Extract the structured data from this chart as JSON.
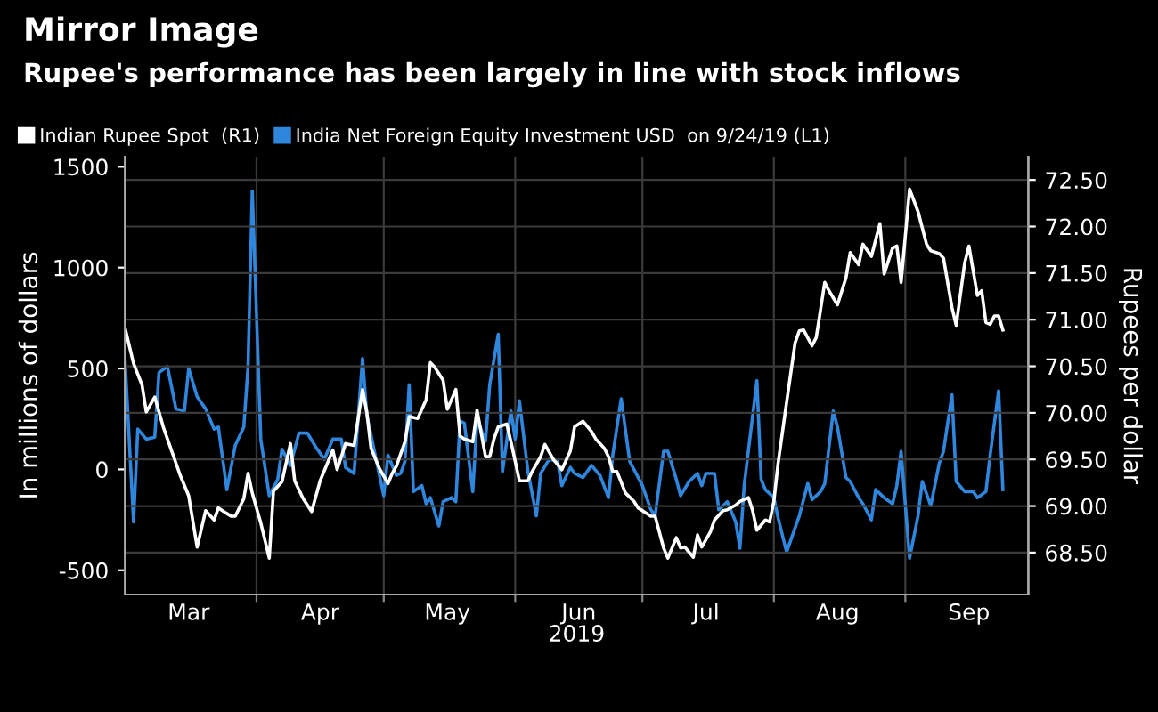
{
  "chart_data": {
    "type": "line",
    "title": "Mirror Image",
    "subtitle": "Rupee's performance has been largely in line with stock inflows",
    "xlabel": "2019",
    "ylabel": "In millions of dollars",
    "y2label": "Rupees per dollar",
    "xlim": [
      "2019-03-01",
      "2019-09-30"
    ],
    "xticks": [
      {
        "value": "2019-04-01",
        "label": null
      },
      {
        "value": "2019-05-01",
        "label": null
      },
      {
        "value": "2019-06-01",
        "label": null
      },
      {
        "value": "2019-07-01",
        "label": null
      },
      {
        "value": "2019-08-01",
        "label": null
      },
      {
        "value": "2019-09-01",
        "label": null
      },
      {
        "value": "2019-03-16",
        "label": "Mar"
      },
      {
        "value": "2019-04-16",
        "label": "Apr"
      },
      {
        "value": "2019-05-16",
        "label": "May"
      },
      {
        "value": "2019-06-16",
        "label": "Jun"
      },
      {
        "value": "2019-07-16",
        "label": "Jul"
      },
      {
        "value": "2019-08-16",
        "label": "Aug"
      },
      {
        "value": "2019-09-16",
        "label": "Sep"
      }
    ],
    "ylim": [
      -620,
      1550
    ],
    "yticks": [
      -500,
      0,
      500,
      1000,
      1500
    ],
    "y2lim": [
      68.05,
      72.75
    ],
    "y2ticks": [
      {
        "value": 68.5,
        "label": "68.50"
      },
      {
        "value": 69.0,
        "label": "69.00"
      },
      {
        "value": 69.5,
        "label": "69.50"
      },
      {
        "value": 70.0,
        "label": "70.00"
      },
      {
        "value": 70.5,
        "label": "70.50"
      },
      {
        "value": 71.0,
        "label": "71.00"
      },
      {
        "value": 71.5,
        "label": "71.50"
      },
      {
        "value": 72.0,
        "label": "72.00"
      },
      {
        "value": 72.5,
        "label": "72.50"
      }
    ],
    "grid": true,
    "legend": "top left",
    "line_style": "solid",
    "marker": "none",
    "series": [
      {
        "name": "Indian Rupee Spot  (R1)",
        "color": "#ffffff",
        "axis": "y2",
        "x": [
          "2019-03-01",
          "2019-03-03",
          "2019-03-05",
          "2019-03-06",
          "2019-03-08",
          "2019-03-10",
          "2019-03-12",
          "2019-03-14",
          "2019-03-16",
          "2019-03-18",
          "2019-03-20",
          "2019-03-22",
          "2019-03-23",
          "2019-03-26",
          "2019-03-27",
          "2019-03-29",
          "2019-03-30",
          "2019-03-31",
          "2019-04-02",
          "2019-04-04",
          "2019-04-05",
          "2019-04-07",
          "2019-04-09",
          "2019-04-10",
          "2019-04-12",
          "2019-04-14",
          "2019-04-16",
          "2019-04-19",
          "2019-04-20",
          "2019-04-22",
          "2019-04-24",
          "2019-04-26",
          "2019-04-27",
          "2019-04-28",
          "2019-04-30",
          "2019-05-02",
          "2019-05-03",
          "2019-05-04",
          "2019-05-06",
          "2019-05-07",
          "2019-05-09",
          "2019-05-11",
          "2019-05-12",
          "2019-05-13",
          "2019-05-15",
          "2019-05-16",
          "2019-05-18",
          "2019-05-19",
          "2019-05-20",
          "2019-05-22",
          "2019-05-23",
          "2019-05-25",
          "2019-05-26",
          "2019-05-27",
          "2019-05-28",
          "2019-05-30",
          "2019-05-31",
          "2019-06-02",
          "2019-06-04",
          "2019-06-05",
          "2019-06-07",
          "2019-06-08",
          "2019-06-10",
          "2019-06-12",
          "2019-06-14",
          "2019-06-15",
          "2019-06-17",
          "2019-06-19",
          "2019-06-20",
          "2019-06-22",
          "2019-06-23",
          "2019-06-24",
          "2019-06-25",
          "2019-06-27",
          "2019-06-29",
          "2019-06-30",
          "2019-07-01",
          "2019-07-03",
          "2019-07-04",
          "2019-07-06",
          "2019-07-07",
          "2019-07-09",
          "2019-07-10",
          "2019-07-11",
          "2019-07-13",
          "2019-07-14",
          "2019-07-15",
          "2019-07-17",
          "2019-07-18",
          "2019-07-20",
          "2019-07-21",
          "2019-07-23",
          "2019-07-24",
          "2019-07-26",
          "2019-07-27",
          "2019-07-28",
          "2019-07-30",
          "2019-07-31",
          "2019-08-01",
          "2019-08-02",
          "2019-08-04",
          "2019-08-06",
          "2019-08-07",
          "2019-08-08",
          "2019-08-10",
          "2019-08-11",
          "2019-08-13",
          "2019-08-14",
          "2019-08-16",
          "2019-08-18",
          "2019-08-19",
          "2019-08-21",
          "2019-08-22",
          "2019-08-24",
          "2019-08-26",
          "2019-08-27",
          "2019-08-29",
          "2019-08-30",
          "2019-08-31",
          "2019-09-02",
          "2019-09-04",
          "2019-09-06",
          "2019-09-07",
          "2019-09-09",
          "2019-09-10",
          "2019-09-12",
          "2019-09-13",
          "2019-09-15",
          "2019-09-16",
          "2019-09-18",
          "2019-09-19",
          "2019-09-20",
          "2019-09-21",
          "2019-09-22",
          "2019-09-23",
          "2019-09-24"
        ],
        "values": [
          70.91,
          70.53,
          70.3,
          70.01,
          70.17,
          69.85,
          69.59,
          69.33,
          69.11,
          68.56,
          68.95,
          68.85,
          68.98,
          68.89,
          68.89,
          69.08,
          69.35,
          69.14,
          68.82,
          68.44,
          69.16,
          69.26,
          69.67,
          69.27,
          69.08,
          68.94,
          69.27,
          69.6,
          69.39,
          69.67,
          69.65,
          70.25,
          70.01,
          69.62,
          69.4,
          69.24,
          69.35,
          69.43,
          69.69,
          69.96,
          69.94,
          70.14,
          70.54,
          70.49,
          70.35,
          70.04,
          70.25,
          69.75,
          69.72,
          69.69,
          70.03,
          69.53,
          69.53,
          69.72,
          69.85,
          69.88,
          69.69,
          69.27,
          69.27,
          69.37,
          69.53,
          69.66,
          69.5,
          69.39,
          69.59,
          69.85,
          69.91,
          69.8,
          69.72,
          69.62,
          69.53,
          69.37,
          69.37,
          69.14,
          69.05,
          68.98,
          68.95,
          68.89,
          68.89,
          68.55,
          68.44,
          68.66,
          68.55,
          68.56,
          68.45,
          68.69,
          68.56,
          68.72,
          68.85,
          68.95,
          68.96,
          69.01,
          69.05,
          69.09,
          68.95,
          68.74,
          68.85,
          68.83,
          69.05,
          69.46,
          70.11,
          70.75,
          70.88,
          70.89,
          70.72,
          70.81,
          71.4,
          71.31,
          71.16,
          71.45,
          71.72,
          71.59,
          71.81,
          71.68,
          72.03,
          71.49,
          71.77,
          71.79,
          71.4,
          72.4,
          72.16,
          71.81,
          71.74,
          71.71,
          71.66,
          71.13,
          70.94,
          71.61,
          71.79,
          71.26,
          71.31,
          70.97,
          70.95,
          71.04,
          71.04,
          70.89
        ]
      },
      {
        "name": "India Net Foreign Equity Investment USD  on 9/24/19 (L1)",
        "color": "#2f86dd",
        "x": [
          "2019-03-01",
          "2019-03-03",
          "2019-03-04",
          "2019-03-06",
          "2019-03-08",
          "2019-03-09",
          "2019-03-11",
          "2019-03-13",
          "2019-03-15",
          "2019-03-16",
          "2019-03-18",
          "2019-03-20",
          "2019-03-22",
          "2019-03-23",
          "2019-03-25",
          "2019-03-27",
          "2019-03-29",
          "2019-03-30",
          "2019-03-31",
          "2019-04-02",
          "2019-04-04",
          "2019-04-06",
          "2019-04-07",
          "2019-04-09",
          "2019-04-11",
          "2019-04-13",
          "2019-04-15",
          "2019-04-17",
          "2019-04-19",
          "2019-04-21",
          "2019-04-22",
          "2019-04-24",
          "2019-04-26",
          "2019-04-27",
          "2019-04-29",
          "2019-05-01",
          "2019-05-02",
          "2019-05-04",
          "2019-05-05",
          "2019-05-06",
          "2019-05-07",
          "2019-05-08",
          "2019-05-10",
          "2019-05-11",
          "2019-05-12",
          "2019-05-14",
          "2019-05-15",
          "2019-05-17",
          "2019-05-18",
          "2019-05-19",
          "2019-05-20",
          "2019-05-22",
          "2019-05-23",
          "2019-05-25",
          "2019-05-26",
          "2019-05-28",
          "2019-05-29",
          "2019-05-31",
          "2019-06-01",
          "2019-06-02",
          "2019-06-04",
          "2019-06-06",
          "2019-06-07",
          "2019-06-09",
          "2019-06-11",
          "2019-06-12",
          "2019-06-14",
          "2019-06-15",
          "2019-06-17",
          "2019-06-19",
          "2019-06-21",
          "2019-06-23",
          "2019-06-24",
          "2019-06-26",
          "2019-06-28",
          "2019-06-29",
          "2019-07-01",
          "2019-07-03",
          "2019-07-04",
          "2019-07-06",
          "2019-07-07",
          "2019-07-09",
          "2019-07-10",
          "2019-07-12",
          "2019-07-14",
          "2019-07-15",
          "2019-07-16",
          "2019-07-18",
          "2019-07-19",
          "2019-07-21",
          "2019-07-23",
          "2019-07-24",
          "2019-07-25",
          "2019-07-28",
          "2019-07-29",
          "2019-07-30",
          "2019-08-01",
          "2019-08-02",
          "2019-08-04",
          "2019-08-06",
          "2019-08-07",
          "2019-08-09",
          "2019-08-10",
          "2019-08-12",
          "2019-08-13",
          "2019-08-15",
          "2019-08-16",
          "2019-08-18",
          "2019-08-19",
          "2019-08-21",
          "2019-08-22",
          "2019-08-24",
          "2019-08-25",
          "2019-08-27",
          "2019-08-29",
          "2019-08-30",
          "2019-08-31",
          "2019-09-02",
          "2019-09-04",
          "2019-09-05",
          "2019-09-07",
          "2019-09-09",
          "2019-09-10",
          "2019-09-12",
          "2019-09-13",
          "2019-09-15",
          "2019-09-17",
          "2019-09-18",
          "2019-09-20",
          "2019-09-21",
          "2019-09-23",
          "2019-09-24"
        ],
        "values": [
          540,
          -260,
          200,
          150,
          160,
          480,
          510,
          300,
          290,
          500,
          360,
          300,
          200,
          210,
          -100,
          120,
          210,
          510,
          1380,
          150,
          -130,
          -50,
          100,
          20,
          180,
          180,
          110,
          50,
          150,
          150,
          10,
          -20,
          550,
          270,
          70,
          -130,
          70,
          -30,
          -20,
          40,
          420,
          -110,
          -80,
          -170,
          -140,
          -280,
          -160,
          -140,
          -160,
          240,
          230,
          -110,
          250,
          140,
          420,
          670,
          -10,
          290,
          150,
          340,
          -10,
          -230,
          -20,
          50,
          40,
          -80,
          10,
          -20,
          -40,
          20,
          -30,
          -140,
          70,
          350,
          40,
          0,
          -80,
          -200,
          -230,
          90,
          90,
          -50,
          -130,
          -60,
          -20,
          -80,
          -20,
          -20,
          -200,
          -160,
          -260,
          -390,
          -80,
          440,
          -50,
          -100,
          -140,
          -240,
          -410,
          -290,
          -230,
          -70,
          -150,
          -110,
          -70,
          290,
          210,
          -40,
          -60,
          -140,
          -170,
          -250,
          -100,
          -140,
          -170,
          -80,
          90,
          -440,
          -230,
          -60,
          -180,
          30,
          90,
          370,
          -60,
          -110,
          -110,
          -140,
          -110,
          70,
          390,
          -100
        ]
      }
    ]
  }
}
